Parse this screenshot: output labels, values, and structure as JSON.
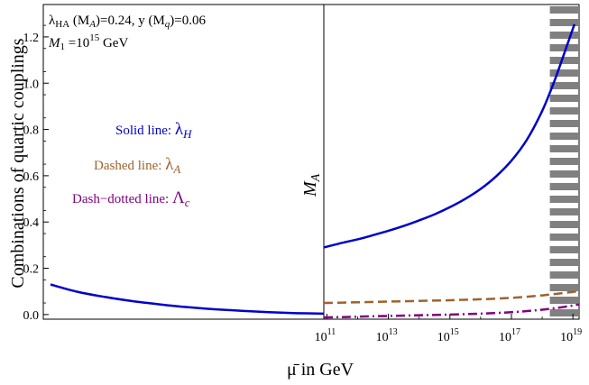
{
  "chart_data": {
    "type": "line",
    "xlabel": "μ̄  in GeV",
    "ylabel": "Combinations of quartic couplings",
    "ylim": [
      -0.02,
      1.34
    ],
    "yticks": [
      "0.0",
      "0.2",
      "0.4",
      "0.6",
      "0.8",
      "1.0",
      "1.2"
    ],
    "yticks_values": [
      0.0,
      0.2,
      0.4,
      0.6,
      0.8,
      1.0,
      1.2
    ],
    "xticks": [
      "10",
      "10",
      "10",
      "10",
      "10"
    ],
    "xticks_exponents": [
      "11",
      "13",
      "15",
      "17",
      "19"
    ],
    "xticks_log10": [
      11,
      13,
      15,
      17,
      19
    ],
    "xlim_log10_right": [
      10.9,
      19.2
    ],
    "annotations": {
      "line1": {
        "lambda": "λ",
        "sub": "HA",
        "rest": " (M",
        "sub2": "A",
        "rest2": ")=0.24, y (M",
        "sub3": "q",
        "rest3": ")=0.06"
      },
      "line2": {
        "m": "M",
        "sub": "1",
        "eq": " =10",
        "sup": "15",
        "unit": " GeV"
      },
      "vline_label_main": "M",
      "vline_label_sub": "A"
    },
    "legend": [
      {
        "text": "Solid line: ",
        "symbol": "λ",
        "sub": "H",
        "color": "#0000cc"
      },
      {
        "text": "Dashed line: ",
        "symbol": "λ",
        "sub": "A",
        "color": "#a0622d"
      },
      {
        "text": "Dash−dotted line: ",
        "symbol": "Λ",
        "sub": "c",
        "color": "#800080"
      }
    ],
    "series": [
      {
        "key": "lambda_H_low",
        "color": "#0000cc",
        "style": "solid",
        "region": "left",
        "x_frac": [
          0.0,
          0.1,
          0.2,
          0.3,
          0.4,
          0.5,
          0.6,
          0.7,
          0.8,
          0.9,
          1.0
        ],
        "y": [
          0.13,
          0.098,
          0.076,
          0.058,
          0.044,
          0.032,
          0.023,
          0.016,
          0.01,
          0.006,
          0.004
        ]
      },
      {
        "key": "lambda_H",
        "color": "#0000cc",
        "style": "solid",
        "region": "right",
        "x": [
          10.9,
          11.5,
          12.0,
          12.5,
          13.0,
          13.5,
          14.0,
          14.5,
          15.0,
          15.5,
          16.0,
          16.5,
          17.0,
          17.5,
          18.0,
          18.4,
          18.8,
          19.05
        ],
        "y": [
          0.29,
          0.31,
          0.325,
          0.343,
          0.362,
          0.383,
          0.407,
          0.433,
          0.464,
          0.5,
          0.543,
          0.597,
          0.665,
          0.755,
          0.88,
          1.01,
          1.16,
          1.255
        ]
      },
      {
        "key": "lambda_A",
        "color": "#a0622d",
        "style": "dashed",
        "region": "right",
        "x": [
          10.9,
          12.0,
          13.0,
          14.0,
          15.0,
          16.0,
          17.0,
          17.5,
          18.0,
          18.5,
          19.0,
          19.2
        ],
        "y": [
          0.05,
          0.053,
          0.056,
          0.059,
          0.062,
          0.066,
          0.072,
          0.077,
          0.083,
          0.09,
          0.098,
          0.102
        ]
      },
      {
        "key": "Lambda_c",
        "color": "#800080",
        "style": "dashdot",
        "region": "right",
        "x": [
          10.9,
          11.5,
          12.0,
          13.0,
          14.0,
          15.0,
          16.0,
          17.0,
          17.5,
          18.0,
          18.5,
          19.0,
          19.2
        ],
        "y": [
          -0.012,
          -0.011,
          -0.009,
          -0.006,
          -0.003,
          0.0,
          0.004,
          0.01,
          0.015,
          0.021,
          0.029,
          0.039,
          0.044
        ]
      }
    ],
    "excluded_band": {
      "x_start": 18.25,
      "x_end": 19.2,
      "pattern": "horizontal-stripes",
      "color": "#808080"
    }
  }
}
